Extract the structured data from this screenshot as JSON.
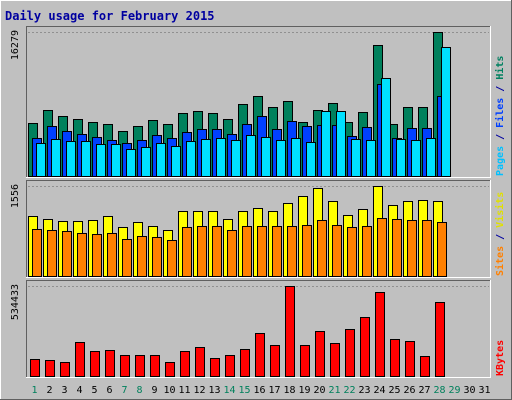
{
  "chart_data": [
    {
      "type": "bar",
      "title": "Daily usage for February 2015",
      "categories": [
        "1",
        "2",
        "3",
        "4",
        "5",
        "6",
        "7",
        "8",
        "9",
        "10",
        "11",
        "12",
        "13",
        "14",
        "15",
        "16",
        "17",
        "18",
        "19",
        "20",
        "21",
        "22",
        "23",
        "24",
        "25",
        "26",
        "27",
        "28",
        "29",
        "30",
        "31"
      ],
      "weekend_days": [
        1,
        7,
        8,
        14,
        15,
        21,
        22,
        28,
        29
      ],
      "panel": "hits-files-pages",
      "max_label": "16279",
      "ylim": [
        0,
        16279
      ],
      "side_labels": [
        {
          "text": "Pages",
          "color": "#00c0ff"
        },
        {
          "text": " / ",
          "color": "#0000a0"
        },
        {
          "text": "Files",
          "color": "#0040ff"
        },
        {
          "text": " / ",
          "color": "#0000a0"
        },
        {
          "text": "Hits",
          "color": "#008060"
        }
      ],
      "series": [
        {
          "name": "Hits",
          "color": "#00805c",
          "values": [
            6000,
            7500,
            6800,
            6500,
            6100,
            5900,
            5100,
            5700,
            6300,
            5900,
            7100,
            7400,
            7100,
            6500,
            8100,
            9000,
            7800,
            8500,
            6100,
            7500,
            8300,
            6100,
            7200,
            14800,
            5900,
            7800,
            7800,
            16279,
            0,
            0,
            0
          ]
        },
        {
          "name": "Files",
          "color": "#0040ff",
          "values": [
            4300,
            5600,
            5100,
            4800,
            4400,
            4100,
            3700,
            4100,
            4600,
            4300,
            5000,
            5300,
            5300,
            4800,
            5900,
            6800,
            5300,
            6200,
            5600,
            5800,
            5800,
            4500,
            5500,
            10400,
            4300,
            5400,
            5400,
            9000,
            0,
            0,
            0
          ]
        },
        {
          "name": "Pages",
          "color": "#00e0ff",
          "values": [
            3700,
            4200,
            4000,
            4000,
            3600,
            3600,
            3000,
            3300,
            3700,
            3400,
            4000,
            4200,
            4300,
            4100,
            4600,
            4400,
            4100,
            4300,
            3900,
            7300,
            7400,
            4200,
            4100,
            11100,
            4200,
            4100,
            4300,
            14600,
            0,
            0,
            0
          ]
        }
      ]
    },
    {
      "type": "bar",
      "panel": "visits-sites",
      "max_label": "1556",
      "ylim": [
        0,
        1556
      ],
      "side_labels": [
        {
          "text": "Sites",
          "color": "#ff8000"
        },
        {
          "text": " / ",
          "color": "#0000a0"
        },
        {
          "text": "Visits",
          "color": "#e0e000"
        }
      ],
      "series": [
        {
          "name": "Visits",
          "color": "#ffff00",
          "values": [
            1030,
            990,
            950,
            950,
            970,
            1030,
            840,
            930,
            870,
            790,
            1120,
            1120,
            1120,
            980,
            1120,
            1180,
            1120,
            1260,
            1380,
            1520,
            1290,
            1060,
            1150,
            1556,
            1230,
            1300,
            1310,
            1300,
            0,
            0,
            0
          ]
        },
        {
          "name": "Sites",
          "color": "#ff8000",
          "values": [
            810,
            800,
            780,
            740,
            720,
            750,
            640,
            700,
            680,
            630,
            850,
            860,
            860,
            800,
            860,
            860,
            860,
            870,
            890,
            960,
            890,
            850,
            870,
            1000,
            990,
            960,
            970,
            940,
            0,
            0,
            0
          ]
        }
      ]
    },
    {
      "type": "bar",
      "panel": "kbytes",
      "max_label": "534433",
      "ylim": [
        0,
        534433
      ],
      "side_labels": [
        {
          "text": "KBytes",
          "color": "#ff0000"
        }
      ],
      "series": [
        {
          "name": "KBytes",
          "color": "#ff0000",
          "values": [
            103000,
            97000,
            86000,
            204000,
            149000,
            152000,
            124000,
            127000,
            124000,
            83000,
            146000,
            170000,
            104000,
            125000,
            163000,
            253000,
            185000,
            534433,
            184000,
            267000,
            193000,
            277000,
            349000,
            499000,
            222000,
            205000,
            121000,
            439000,
            0,
            0,
            0
          ]
        }
      ]
    }
  ]
}
